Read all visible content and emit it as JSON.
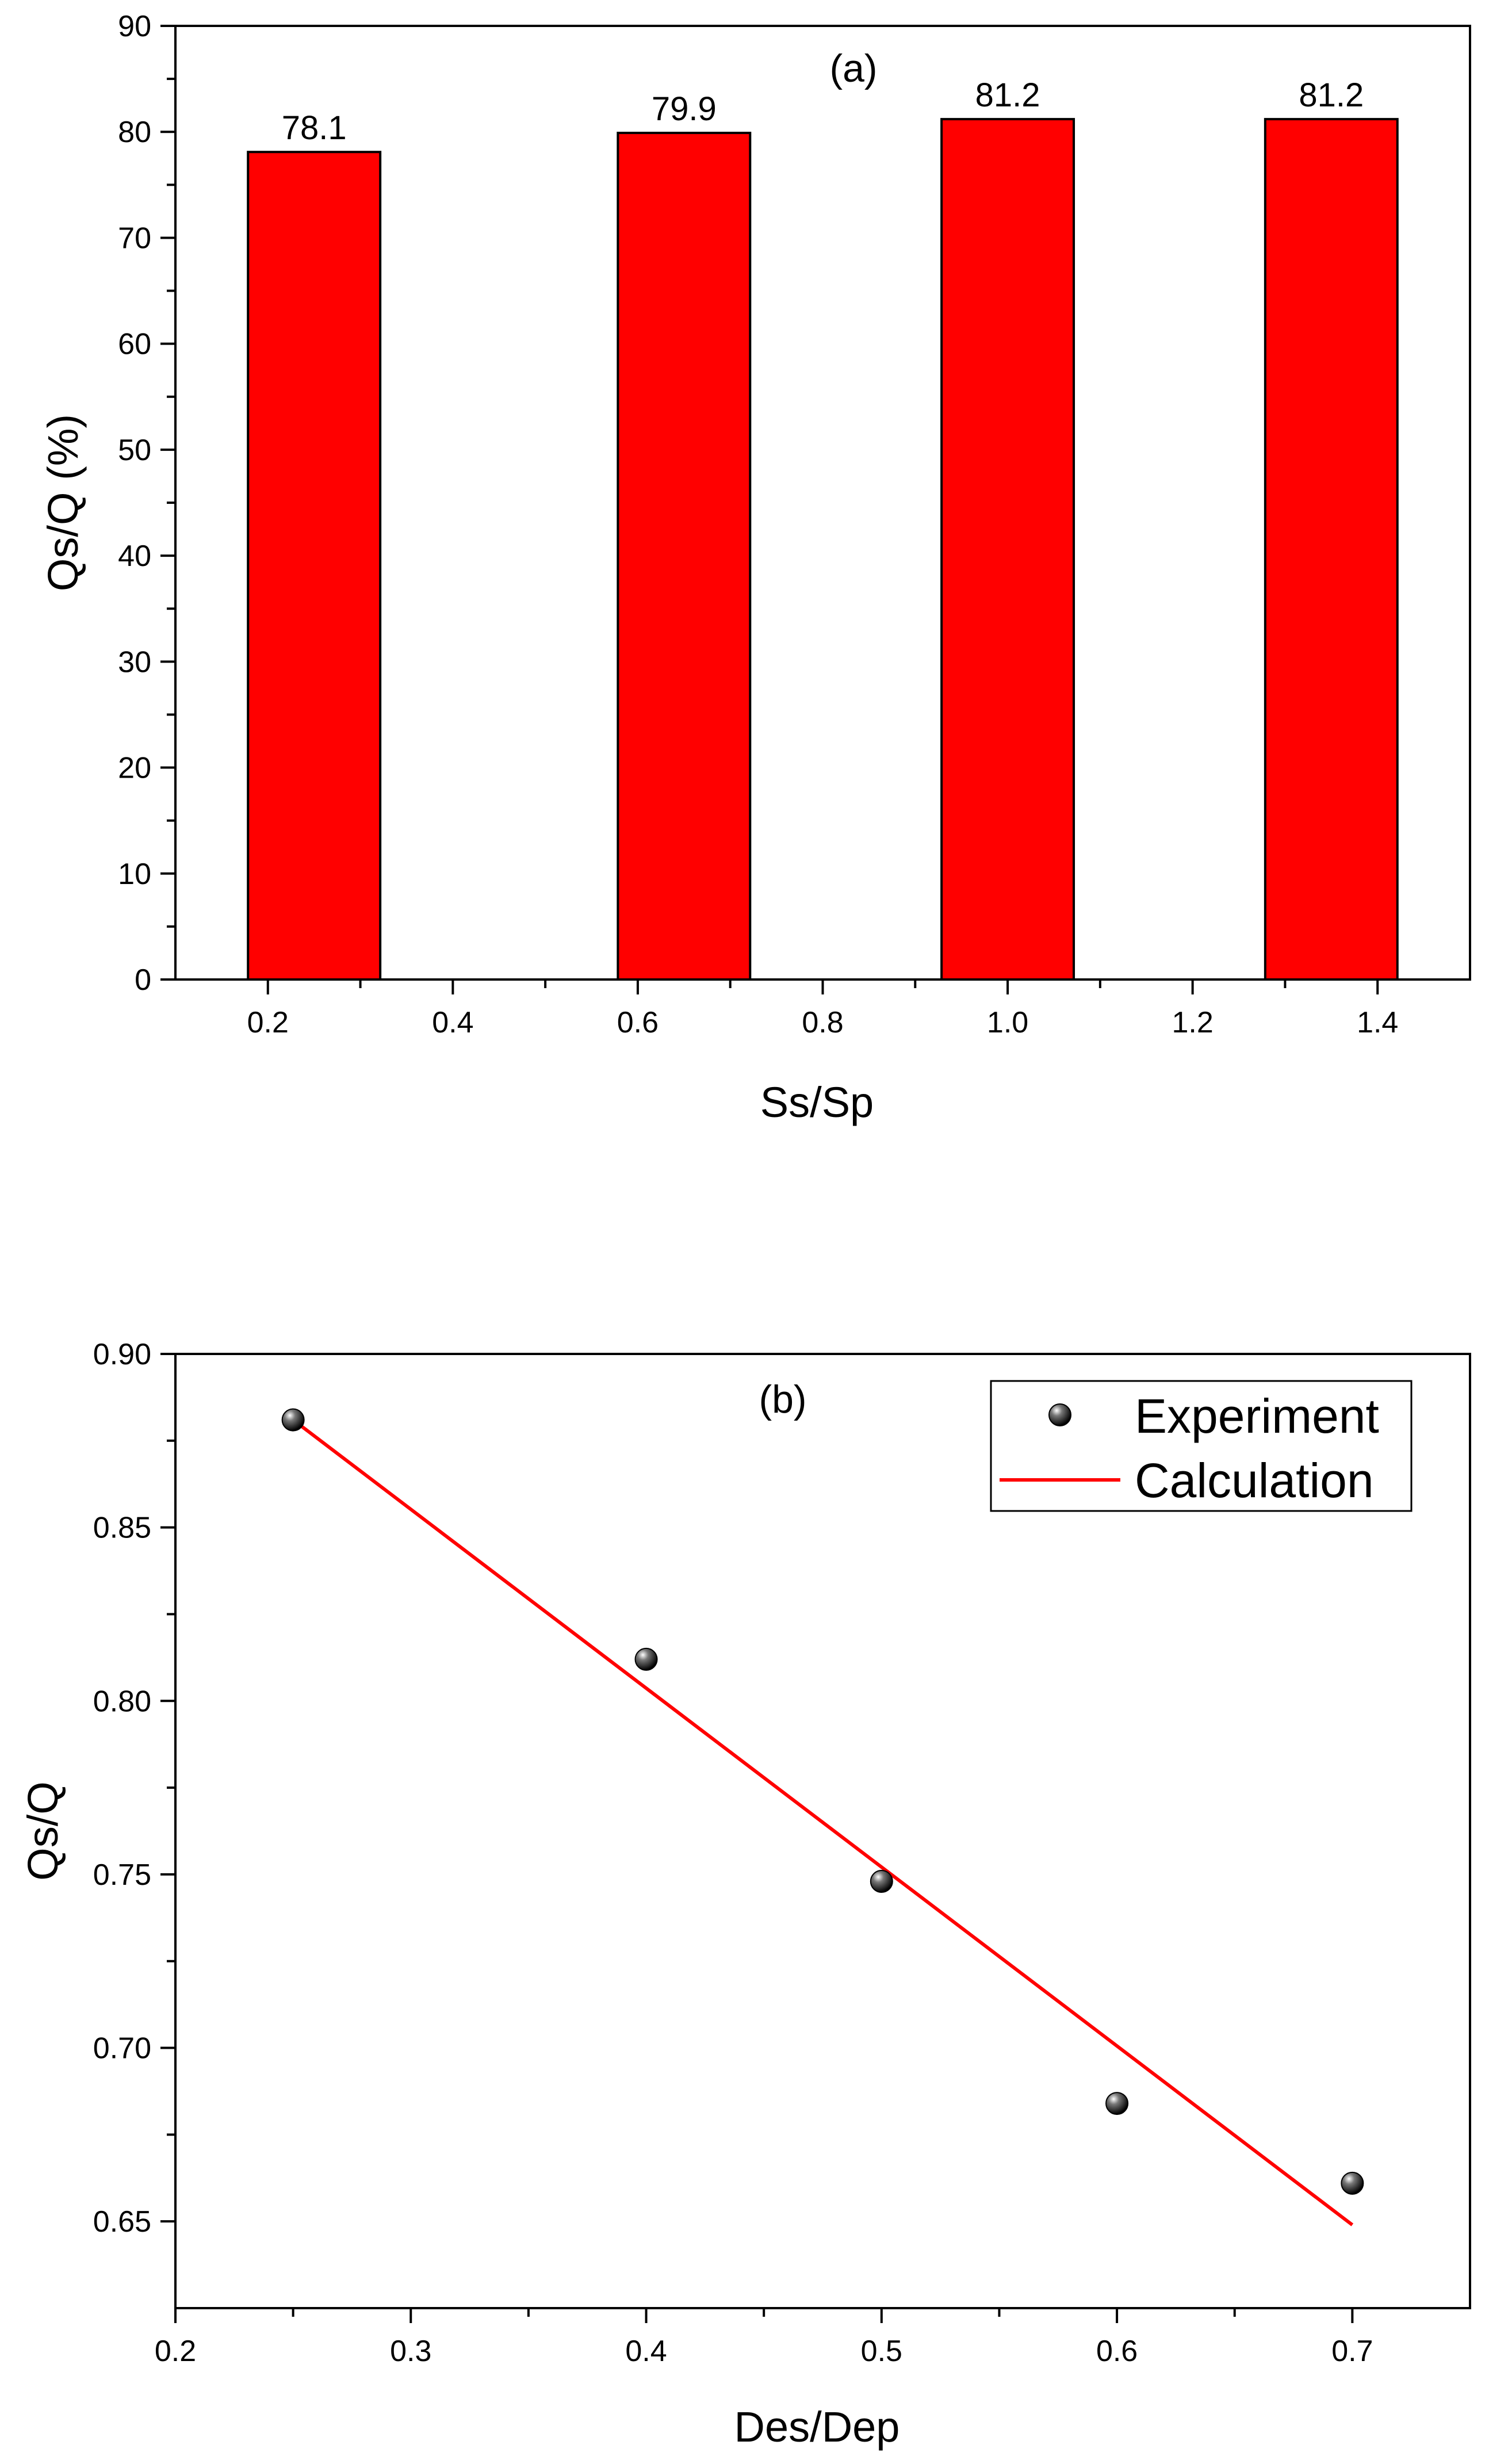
{
  "chart_data": [
    {
      "type": "bar",
      "panel_label": "(a)",
      "x": [
        0.25,
        0.65,
        1.0,
        1.35
      ],
      "values": [
        78.1,
        79.9,
        81.2,
        81.2
      ],
      "value_labels": [
        "78.1",
        "79.9",
        "81.2",
        "81.2"
      ],
      "bar_width": 0.143,
      "xlabel": "Ss/Sp",
      "ylabel": "Qs/Q (%)",
      "xlim": [
        0.1,
        1.5
      ],
      "ylim": [
        0,
        90
      ],
      "xticks": [
        0.2,
        0.4,
        0.6,
        0.8,
        1.0,
        1.2,
        1.4
      ],
      "xtick_labels": [
        "0.2",
        "0.4",
        "0.6",
        "0.8",
        "1.0",
        "1.2",
        "1.4"
      ],
      "yticks": [
        0,
        10,
        20,
        30,
        40,
        50,
        60,
        70,
        80,
        90
      ],
      "ytick_labels": [
        "0",
        "10",
        "20",
        "30",
        "40",
        "50",
        "60",
        "70",
        "80",
        "90"
      ],
      "bar_color": "#ff0000",
      "grid": false
    },
    {
      "type": "scatter",
      "panel_label": "(b)",
      "series": [
        {
          "name": "Experiment",
          "kind": "points",
          "x": [
            0.25,
            0.4,
            0.5,
            0.6,
            0.7
          ],
          "y": [
            0.881,
            0.812,
            0.748,
            0.684,
            0.661
          ],
          "color": "#000000"
        },
        {
          "name": "Calculation",
          "kind": "line",
          "x": [
            0.25,
            0.7
          ],
          "y": [
            0.881,
            0.649
          ],
          "color": "#ff0000"
        }
      ],
      "xlabel": "Des/Dep",
      "ylabel": "Qs/Q",
      "xlim": [
        0.2,
        0.75
      ],
      "ylim": [
        0.625,
        0.9
      ],
      "xticks": [
        0.2,
        0.3,
        0.4,
        0.5,
        0.6,
        0.7
      ],
      "xtick_labels": [
        "0.2",
        "0.3",
        "0.4",
        "0.5",
        "0.6",
        "0.7"
      ],
      "yticks": [
        0.65,
        0.7,
        0.75,
        0.8,
        0.85,
        0.9
      ],
      "ytick_labels": [
        "0.65",
        "0.70",
        "0.75",
        "0.80",
        "0.85",
        "0.90"
      ],
      "legend": {
        "position": "top-right",
        "entries": [
          "Experiment",
          "Calculation"
        ]
      },
      "grid": false
    }
  ]
}
